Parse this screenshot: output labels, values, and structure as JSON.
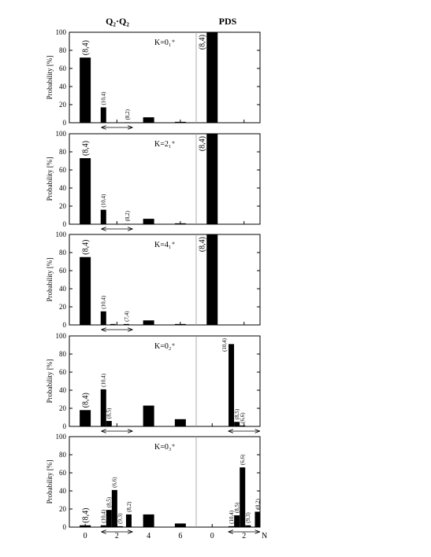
{
  "header": {
    "left": "Q₂·Q₂",
    "right": "PDS"
  },
  "x_axis": {
    "label": "N",
    "left_xlim": [
      -1,
      7
    ],
    "right_xlim": [
      -1,
      3
    ],
    "left_ticks": [
      0,
      2,
      4,
      6
    ],
    "right_ticks": [
      0,
      2
    ]
  },
  "chart_data": [
    {
      "type": "bar",
      "annotation": "K=0₁⁺",
      "ylabel": "Probability [%]",
      "ylim": [
        0,
        100
      ],
      "yticks": [
        0,
        20,
        40,
        60,
        80,
        100
      ],
      "left": [
        {
          "x": 0,
          "value": 72,
          "label": "(8,4)"
        },
        {
          "x": 1.15,
          "value": 17,
          "label": "(10,4)"
        },
        {
          "x": 2.65,
          "value": 0.5,
          "label": "(8,2)"
        },
        {
          "x": 4,
          "value": 6,
          "label": null
        },
        {
          "x": 6,
          "value": 1,
          "label": null
        }
      ],
      "right": [
        {
          "x": 0,
          "value": 100,
          "label": "(8,4)"
        }
      ]
    },
    {
      "type": "bar",
      "annotation": "K=2₁⁺",
      "ylabel": "Probability [%]",
      "ylim": [
        0,
        100
      ],
      "yticks": [
        0,
        20,
        40,
        60,
        80,
        100
      ],
      "left": [
        {
          "x": 0,
          "value": 73,
          "label": "(8,4)"
        },
        {
          "x": 1.15,
          "value": 16,
          "label": "(10,4)"
        },
        {
          "x": 2.65,
          "value": 0.5,
          "label": "(8,2)"
        },
        {
          "x": 4,
          "value": 6,
          "label": null
        },
        {
          "x": 6,
          "value": 1,
          "label": null
        }
      ],
      "right": [
        {
          "x": 0,
          "value": 100,
          "label": "(8,4)"
        }
      ]
    },
    {
      "type": "bar",
      "annotation": "K=4₁⁺",
      "ylabel": "Probability [%]",
      "ylim": [
        0,
        100
      ],
      "yticks": [
        0,
        20,
        40,
        60,
        80,
        100
      ],
      "left": [
        {
          "x": 0,
          "value": 75,
          "label": "(8,4)"
        },
        {
          "x": 1.15,
          "value": 15,
          "label": "(10,4)"
        },
        {
          "x": 1.75,
          "value": 1,
          "label": null
        },
        {
          "x": 2.6,
          "value": 1,
          "label": "(7,4)"
        },
        {
          "x": 4,
          "value": 5,
          "label": null
        },
        {
          "x": 6,
          "value": 1,
          "label": null
        }
      ],
      "right": [
        {
          "x": 0,
          "value": 100,
          "label": "(8,4)"
        }
      ]
    },
    {
      "type": "bar",
      "annotation": "K=0₂⁺",
      "ylabel": "Probability [%]",
      "ylim": [
        0,
        100
      ],
      "yticks": [
        0,
        20,
        40,
        60,
        80,
        100
      ],
      "left": [
        {
          "x": 0,
          "value": 18,
          "label": "(8,4)"
        },
        {
          "x": 1.15,
          "value": 41,
          "label": "(10,4)"
        },
        {
          "x": 1.5,
          "value": 6,
          "label": "(8,5)"
        },
        {
          "x": 4,
          "value": 23,
          "label": null
        },
        {
          "x": 6,
          "value": 8,
          "label": null
        }
      ],
      "right": [
        {
          "x": 1.2,
          "value": 91,
          "label": "(10,4)"
        },
        {
          "x": 1.55,
          "value": 5,
          "label": "(8,5)"
        },
        {
          "x": 1.9,
          "value": 1,
          "label": "(6,6)"
        }
      ]
    },
    {
      "type": "bar",
      "annotation": "K=0₃⁺",
      "ylabel": "Probability [%]",
      "ylim": [
        0,
        100
      ],
      "yticks": [
        0,
        20,
        40,
        60,
        80,
        100
      ],
      "left": [
        {
          "x": 0,
          "value": 2,
          "label": "(8,4)"
        },
        {
          "x": 1.15,
          "value": 2,
          "label": "(10,4)"
        },
        {
          "x": 1.5,
          "value": 19,
          "label": "(8,5)"
        },
        {
          "x": 1.85,
          "value": 41,
          "label": "(6,6)"
        },
        {
          "x": 2.2,
          "value": 1,
          "label": "(9,3)"
        },
        {
          "x": 2.75,
          "value": 14,
          "label": "(8,2)"
        },
        {
          "x": 4,
          "value": 14,
          "label": null
        },
        {
          "x": 6,
          "value": 4,
          "label": null
        }
      ],
      "right": [
        {
          "x": 1.2,
          "value": 1,
          "label": "(10,4)"
        },
        {
          "x": 1.55,
          "value": 13,
          "label": "(8,5)"
        },
        {
          "x": 1.9,
          "value": 66,
          "label": "(6,6)"
        },
        {
          "x": 2.25,
          "value": 2,
          "label": "(9,3)"
        },
        {
          "x": 2.85,
          "value": 17,
          "label": "(8,2)"
        }
      ]
    }
  ]
}
